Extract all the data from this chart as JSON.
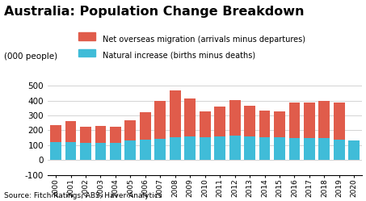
{
  "title": "Australia: Population Change Breakdown",
  "ylabel": "(000 people)",
  "source": "Source: Fitch Ratings, ABS, Haver Analytics",
  "years": [
    2000,
    2001,
    2002,
    2003,
    2004,
    2005,
    2006,
    2007,
    2008,
    2009,
    2010,
    2011,
    2012,
    2013,
    2014,
    2015,
    2016,
    2017,
    2018,
    2019,
    2020
  ],
  "natural_increase": [
    120,
    120,
    115,
    118,
    115,
    130,
    135,
    145,
    155,
    158,
    155,
    158,
    165,
    158,
    155,
    152,
    150,
    150,
    148,
    138,
    130
  ],
  "net_migration": [
    115,
    140,
    110,
    110,
    108,
    140,
    185,
    255,
    315,
    255,
    170,
    200,
    240,
    205,
    180,
    178,
    240,
    235,
    250,
    248,
    0
  ],
  "migration_color": "#e05c4b",
  "natural_color": "#40bcd8",
  "ylim": [
    -100,
    550
  ],
  "yticks": [
    -100,
    0,
    100,
    200,
    300,
    400,
    500
  ],
  "grid_color": "#cccccc",
  "background_color": "#ffffff",
  "title_fontsize": 11.5,
  "legend_migration": "Net overseas migration (arrivals minus departures)",
  "legend_natural": "Natural increase (births minus deaths)"
}
